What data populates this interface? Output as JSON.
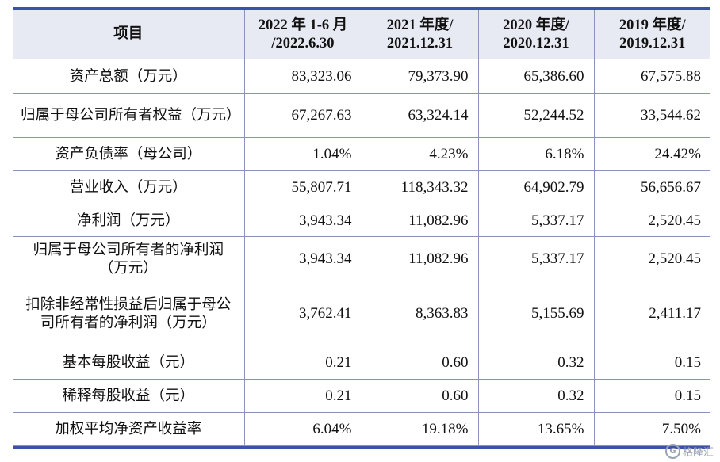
{
  "header": {
    "item": "项目",
    "periods": [
      {
        "line1": "2022 年 1-6 月",
        "line2": "/2022.6.30"
      },
      {
        "line1": "2021 年度/",
        "line2": "2021.12.31"
      },
      {
        "line1": "2020 年度/",
        "line2": "2020.12.31"
      },
      {
        "line1": "2019 年度/",
        "line2": "2019.12.31"
      }
    ]
  },
  "rows": [
    {
      "label": "资产总额（万元）",
      "values": [
        "83,323.06",
        "79,373.90",
        "65,386.60",
        "67,575.88"
      ]
    },
    {
      "label": "归属于母公司所有者权益（万元）",
      "values": [
        "67,267.63",
        "63,324.14",
        "52,244.52",
        "33,544.62"
      ]
    },
    {
      "label": "资产负债率（母公司）",
      "values": [
        "1.04%",
        "4.23%",
        "6.18%",
        "24.42%"
      ]
    },
    {
      "label": "营业收入（万元）",
      "values": [
        "55,807.71",
        "118,343.32",
        "64,902.79",
        "56,656.67"
      ]
    },
    {
      "label": "净利润（万元）",
      "values": [
        "3,943.34",
        "11,082.96",
        "5,337.17",
        "2,520.45"
      ]
    },
    {
      "label": "归属于母公司所有者的净利润（万元）",
      "values": [
        "3,943.34",
        "11,082.96",
        "5,337.17",
        "2,520.45"
      ]
    },
    {
      "label": "扣除非经常性损益后归属于母公司所有者的净利润（万元）",
      "values": [
        "3,762.41",
        "8,363.83",
        "5,155.69",
        "2,411.17"
      ]
    },
    {
      "label": "基本每股收益（元）",
      "values": [
        "0.21",
        "0.60",
        "0.32",
        "0.15"
      ]
    },
    {
      "label": "稀释每股收益（元）",
      "values": [
        "0.21",
        "0.60",
        "0.32",
        "0.15"
      ]
    },
    {
      "label": "加权平均净资产收益率",
      "values": [
        "6.04%",
        "19.18%",
        "13.65%",
        "7.50%"
      ]
    }
  ],
  "watermark": {
    "icon": "gelonghui-logo-icon",
    "text": "格隆汇"
  }
}
